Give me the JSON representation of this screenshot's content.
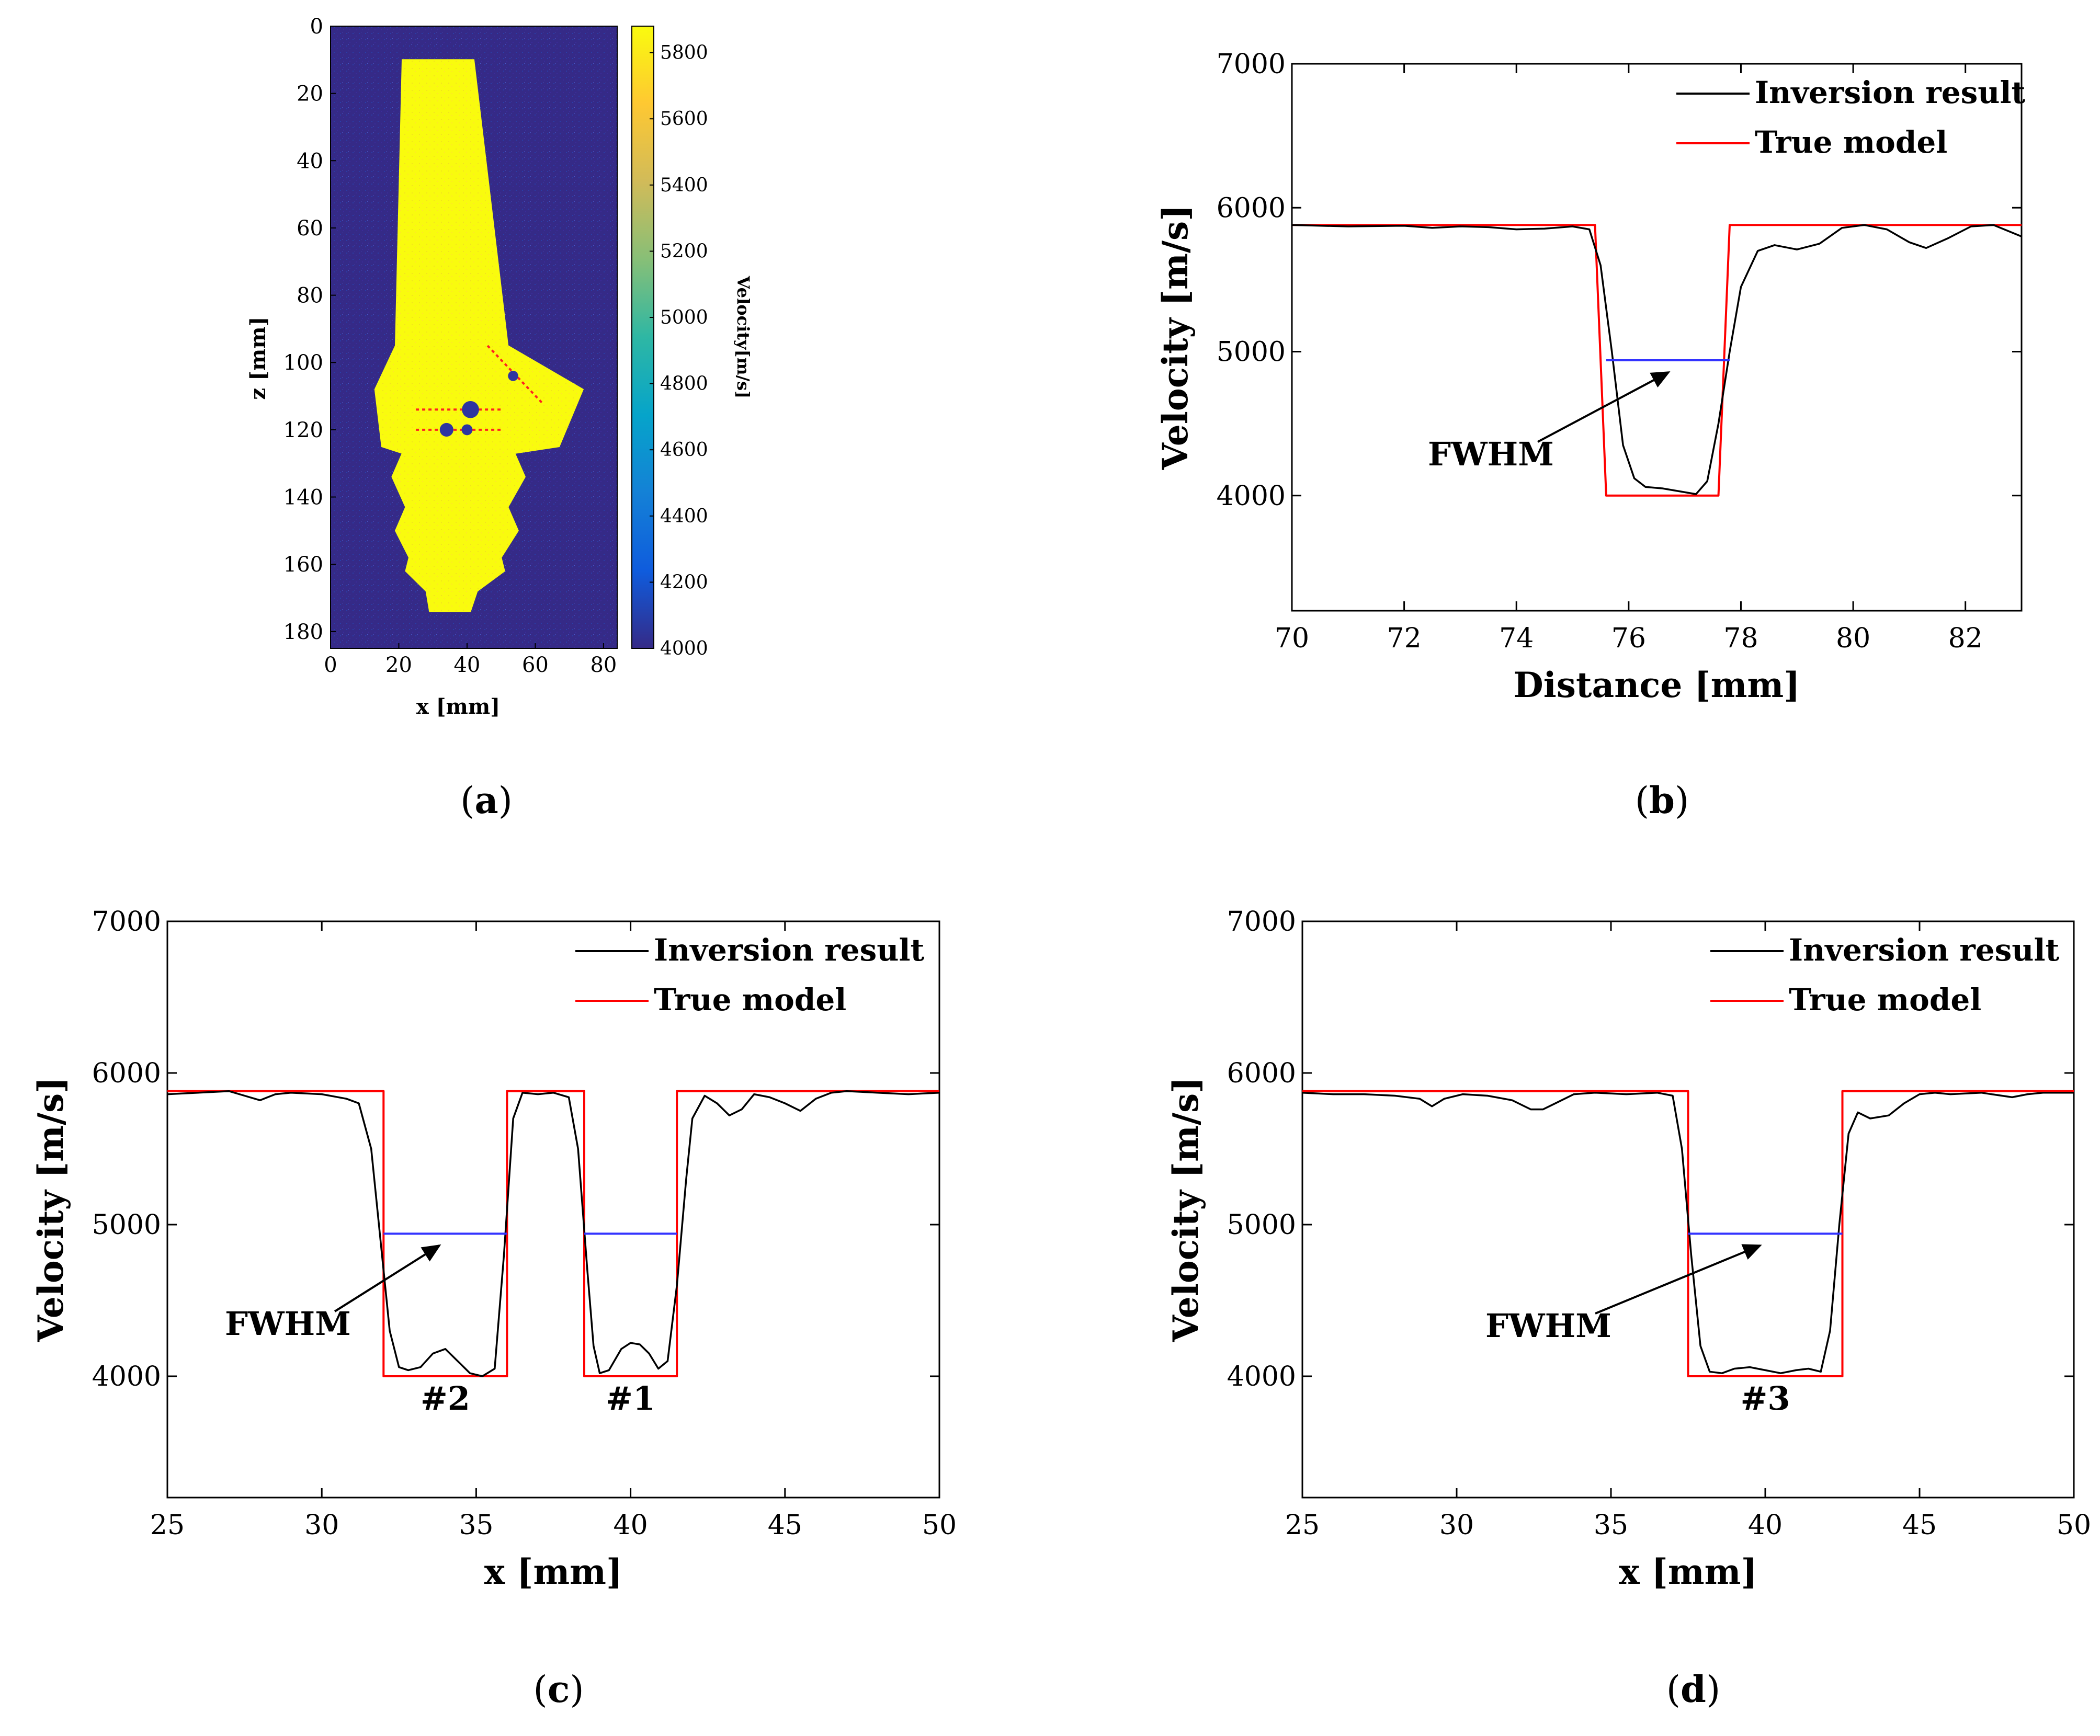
{
  "chart_data": [
    {
      "id": "a",
      "type": "heatmap",
      "panel_label": "a",
      "xlabel": "x [mm]",
      "ylabel": "z [mm]",
      "xlim": [
        0,
        84
      ],
      "ylim": [
        185,
        0
      ],
      "xticks": [
        0,
        20,
        40,
        60,
        80
      ],
      "yticks": [
        0,
        20,
        40,
        60,
        80,
        100,
        120,
        140,
        160,
        180
      ],
      "colorbar": {
        "label": "Velocity[m/s]",
        "range": [
          4000,
          5880
        ],
        "ticks": [
          4000,
          4200,
          4400,
          4600,
          4800,
          5000,
          5200,
          5400,
          5600,
          5800
        ],
        "colors": [
          "#352a87",
          "#0f5cdd",
          "#1481d6",
          "#06a4ca",
          "#2eb7a4",
          "#87bf77",
          "#d1bb59",
          "#fec832",
          "#f9fb0e"
        ]
      },
      "background_velocity": 4000,
      "body_velocity": 5880,
      "body_outline": [
        [
          21,
          10
        ],
        [
          42,
          10
        ],
        [
          52,
          95
        ],
        [
          74,
          108
        ],
        [
          67,
          125
        ],
        [
          54,
          127
        ],
        [
          57,
          134
        ],
        [
          52,
          143
        ],
        [
          55,
          150
        ],
        [
          50,
          158
        ],
        [
          51,
          162
        ],
        [
          43,
          168
        ],
        [
          41,
          174
        ],
        [
          29,
          174
        ],
        [
          28,
          168
        ],
        [
          22,
          162
        ],
        [
          23,
          158
        ],
        [
          19,
          150
        ],
        [
          22,
          143
        ],
        [
          18,
          134
        ],
        [
          21,
          127
        ],
        [
          15,
          125
        ],
        [
          13,
          108
        ],
        [
          19,
          95
        ],
        [
          21,
          10
        ]
      ],
      "defects": [
        {
          "x": 41,
          "z": 114,
          "r": 2.5
        },
        {
          "x": 34,
          "z": 120,
          "r": 2.0
        },
        {
          "x": 40,
          "z": 120,
          "r": 1.6
        },
        {
          "x": 53.5,
          "z": 104,
          "r": 1.5
        }
      ],
      "profile_lines": [
        {
          "x1": 25,
          "z1": 114,
          "x2": 50,
          "z2": 114
        },
        {
          "x1": 25,
          "z1": 120,
          "x2": 50,
          "z2": 120
        },
        {
          "x1": 46,
          "z1": 95,
          "x2": 62,
          "z2": 112
        }
      ]
    },
    {
      "id": "b",
      "type": "line",
      "panel_label": "b",
      "xlabel": "Distance [mm]",
      "ylabel": "Velocity [m/s]",
      "xlim": [
        70,
        83
      ],
      "ylim": [
        3200,
        7000
      ],
      "xticks": [
        70,
        72,
        74,
        76,
        78,
        80,
        82
      ],
      "yticks": [
        4000,
        5000,
        6000,
        7000
      ],
      "legend": [
        "Inversion result",
        "True model"
      ],
      "series": [
        {
          "name": "Inversion result",
          "color": "#000000",
          "x": [
            70,
            71,
            72,
            72.5,
            73,
            73.5,
            74,
            74.5,
            75,
            75.3,
            75.5,
            75.7,
            75.9,
            76.1,
            76.3,
            76.6,
            76.9,
            77.2,
            77.4,
            77.6,
            77.8,
            78.0,
            78.3,
            78.6,
            79,
            79.4,
            79.8,
            80.2,
            80.6,
            81,
            81.3,
            81.7,
            82.1,
            82.5,
            83
          ],
          "y": [
            5880,
            5870,
            5875,
            5860,
            5870,
            5865,
            5850,
            5855,
            5870,
            5850,
            5600,
            5000,
            4350,
            4120,
            4060,
            4050,
            4030,
            4010,
            4100,
            4500,
            5000,
            5450,
            5700,
            5740,
            5710,
            5750,
            5860,
            5880,
            5850,
            5760,
            5720,
            5790,
            5870,
            5880,
            5800
          ]
        },
        {
          "name": "True model",
          "color": "#ff0000",
          "x": [
            70,
            75.4,
            75.6,
            77.6,
            77.8,
            83
          ],
          "y": [
            5880,
            5880,
            4000,
            4000,
            5880,
            5880
          ]
        }
      ],
      "fwhm": {
        "x1": 75.6,
        "x2": 77.8,
        "y": 4940,
        "label": "FWHM"
      }
    },
    {
      "id": "c",
      "type": "line",
      "panel_label": "c",
      "xlabel": "x [mm]",
      "ylabel": "Velocity [m/s]",
      "xlim": [
        25,
        50
      ],
      "ylim": [
        3200,
        7000
      ],
      "xticks": [
        25,
        30,
        35,
        40,
        45,
        50
      ],
      "yticks": [
        4000,
        5000,
        6000,
        7000
      ],
      "legend": [
        "Inversion result",
        "True model"
      ],
      "series": [
        {
          "name": "Inversion result",
          "color": "#000000",
          "x": [
            25,
            26,
            27,
            27.5,
            28,
            28.5,
            29,
            30,
            30.8,
            31.2,
            31.6,
            31.9,
            32.2,
            32.5,
            32.8,
            33.2,
            33.6,
            34,
            34.4,
            34.8,
            35.2,
            35.6,
            35.9,
            36.2,
            36.5,
            37,
            37.5,
            38,
            38.3,
            38.6,
            38.8,
            39.0,
            39.3,
            39.7,
            40,
            40.3,
            40.6,
            40.9,
            41.2,
            41.5,
            41.8,
            42,
            42.4,
            42.8,
            43.2,
            43.6,
            44,
            44.5,
            45,
            45.5,
            46,
            46.5,
            47,
            48,
            49,
            50
          ],
          "y": [
            5860,
            5870,
            5880,
            5850,
            5820,
            5860,
            5870,
            5860,
            5830,
            5800,
            5500,
            4900,
            4300,
            4060,
            4040,
            4060,
            4150,
            4180,
            4100,
            4020,
            4000,
            4050,
            4800,
            5700,
            5870,
            5860,
            5870,
            5840,
            5500,
            4700,
            4200,
            4020,
            4040,
            4180,
            4220,
            4210,
            4150,
            4050,
            4100,
            4600,
            5300,
            5700,
            5850,
            5800,
            5720,
            5760,
            5860,
            5840,
            5800,
            5750,
            5830,
            5870,
            5880,
            5870,
            5860,
            5870
          ]
        },
        {
          "name": "True model",
          "color": "#ff0000",
          "x": [
            25,
            32,
            32,
            36,
            36,
            38.5,
            38.5,
            41.5,
            41.5,
            50
          ],
          "y": [
            5880,
            5880,
            4000,
            4000,
            5880,
            5880,
            4000,
            4000,
            5880,
            5880
          ]
        }
      ],
      "fwhm": [
        {
          "x1": 32,
          "x2": 36,
          "y": 4940
        },
        {
          "x1": 38.5,
          "x2": 41.5,
          "y": 4940
        }
      ],
      "fwhm_label": "FWHM",
      "annotations": [
        {
          "text": "#2",
          "x": 34,
          "y": 3780
        },
        {
          "text": "#1",
          "x": 40,
          "y": 3780
        }
      ]
    },
    {
      "id": "d",
      "type": "line",
      "panel_label": "d",
      "xlabel": "x [mm]",
      "ylabel": "Velocity [m/s]",
      "xlim": [
        25,
        50
      ],
      "ylim": [
        3200,
        7000
      ],
      "xticks": [
        25,
        30,
        35,
        40,
        45,
        50
      ],
      "yticks": [
        4000,
        5000,
        6000,
        7000
      ],
      "legend": [
        "Inversion result",
        "True model"
      ],
      "series": [
        {
          "name": "Inversion result",
          "color": "#000000",
          "x": [
            25,
            26,
            27,
            28,
            28.8,
            29.2,
            29.6,
            30.2,
            31,
            31.8,
            32.4,
            32.8,
            33.2,
            33.8,
            34.5,
            35.5,
            36.5,
            37,
            37.3,
            37.6,
            37.9,
            38.2,
            38.6,
            39,
            39.5,
            40,
            40.5,
            41,
            41.4,
            41.8,
            42.1,
            42.4,
            42.7,
            43,
            43.4,
            44,
            44.5,
            45,
            45.5,
            46,
            47,
            48,
            48.5,
            49,
            50
          ],
          "y": [
            5870,
            5860,
            5860,
            5850,
            5830,
            5780,
            5830,
            5860,
            5850,
            5820,
            5760,
            5760,
            5800,
            5860,
            5870,
            5860,
            5870,
            5850,
            5500,
            4800,
            4200,
            4030,
            4020,
            4050,
            4060,
            4040,
            4020,
            4040,
            4050,
            4030,
            4300,
            5000,
            5600,
            5740,
            5700,
            5720,
            5800,
            5860,
            5870,
            5860,
            5870,
            5840,
            5860,
            5870,
            5870
          ]
        },
        {
          "name": "True model",
          "color": "#ff0000",
          "x": [
            25,
            37.5,
            37.5,
            42.5,
            42.5,
            50
          ],
          "y": [
            5880,
            5880,
            4000,
            4000,
            5880,
            5880
          ]
        }
      ],
      "fwhm": {
        "x1": 37.5,
        "x2": 42.5,
        "y": 4940,
        "label": "FWHM"
      },
      "annotations": [
        {
          "text": "#3",
          "x": 40,
          "y": 3780
        }
      ]
    }
  ]
}
